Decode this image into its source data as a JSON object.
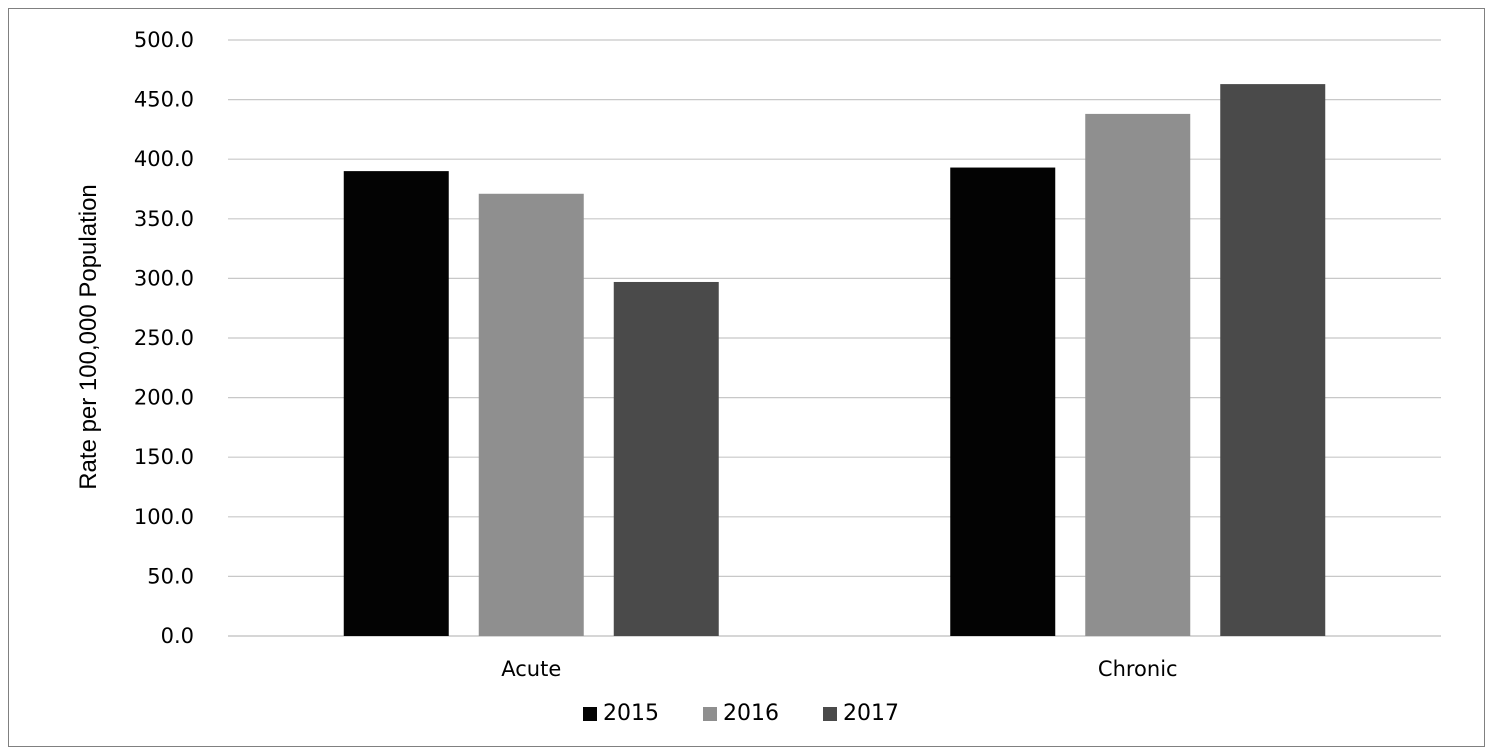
{
  "chart_data": {
    "type": "bar",
    "title": "",
    "xlabel": "",
    "ylabel": "Rate per 100,000 Population",
    "categories": [
      "Acute",
      "Chronic"
    ],
    "series": [
      {
        "name": "2015",
        "values": [
          390.0,
          393.0
        ],
        "color": "#030303"
      },
      {
        "name": "2016",
        "values": [
          371.0,
          438.0
        ],
        "color": "#8f8f8f"
      },
      {
        "name": "2017",
        "values": [
          297.0,
          463.0
        ],
        "color": "#4a4a4a"
      }
    ],
    "ylim": [
      0,
      500
    ],
    "yticks": [
      "0.0",
      "50.0",
      "100.0",
      "150.0",
      "200.0",
      "250.0",
      "300.0",
      "350.0",
      "400.0",
      "450.0",
      "500.0"
    ],
    "grid": true,
    "legend_position": "bottom",
    "gridline_color": "#c8c8c8"
  }
}
